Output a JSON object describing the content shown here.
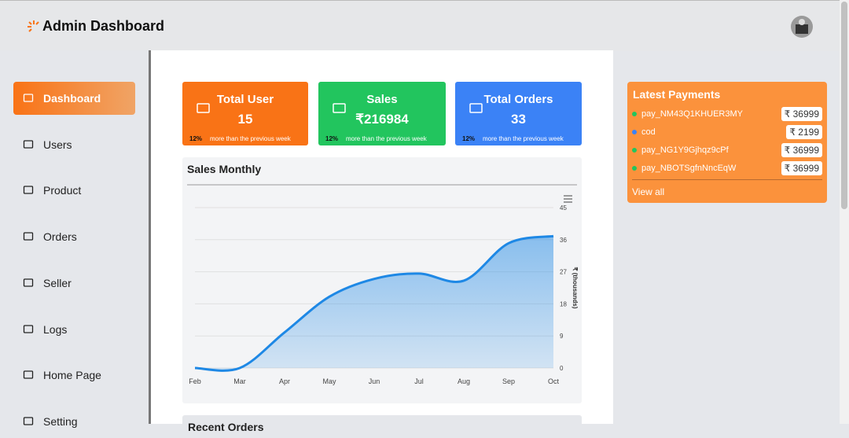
{
  "header": {
    "title": "Admin Dashboard"
  },
  "sidebar": {
    "items": [
      "Dashboard",
      "Users",
      "Product",
      "Orders",
      "Seller",
      "Logs",
      "Home Page",
      "Setting"
    ],
    "active": 0
  },
  "cards": [
    {
      "title": "Total User",
      "value": "15",
      "percent": "12%",
      "note": "more than the previous week",
      "color": "#f97316"
    },
    {
      "title": "Sales",
      "value": "₹216984",
      "percent": "12%",
      "note": "more than the previous week",
      "color": "#22c55e"
    },
    {
      "title": "Total Orders",
      "value": "33",
      "percent": "12%",
      "note": "more than the previous week",
      "color": "#3b82f6"
    }
  ],
  "chart_data": {
    "type": "area",
    "title": "Sales Monthly",
    "y_label": "₹ (thousands)",
    "categories": [
      "Feb",
      "Mar",
      "Apr",
      "May",
      "Jun",
      "Jul",
      "Aug",
      "Sep",
      "Oct"
    ],
    "series": [
      {
        "name": "Sales",
        "color": "#1e88e5",
        "values": [
          0,
          0,
          10,
          20,
          25,
          26.5,
          24.5,
          35,
          37
        ]
      }
    ],
    "ylim": [
      0,
      45
    ],
    "yticks": [
      0,
      9,
      18,
      27,
      36,
      45
    ],
    "grid": true
  },
  "payments": {
    "title": "Latest Payments",
    "items": [
      {
        "id": "pay_NM43Q1KHUER3MY",
        "amount": "₹ 36999",
        "color": "#22c55e"
      },
      {
        "id": "cod",
        "amount": "₹ 2199",
        "color": "#3b82f6"
      },
      {
        "id": "pay_NG1Y9Gjhqz9cPf",
        "amount": "₹ 36999",
        "color": "#22c55e"
      },
      {
        "id": "pay_NBOTSgfnNncEqW",
        "amount": "₹ 36999",
        "color": "#22c55e"
      }
    ],
    "link": "View all"
  },
  "orders": {
    "title": "Recent Orders"
  }
}
